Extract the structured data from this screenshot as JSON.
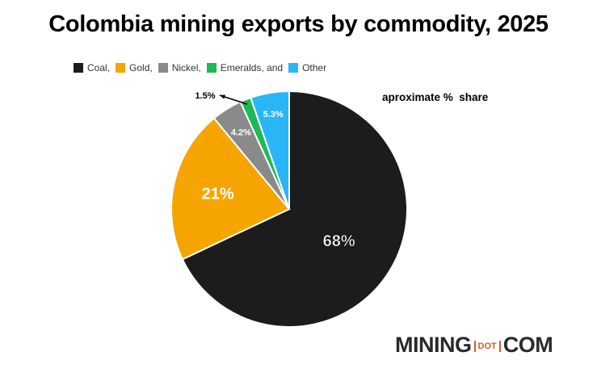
{
  "chart_data": {
    "type": "pie",
    "title": "Colombia mining exports by commodity, 2025",
    "note": "aproximate %  share",
    "legend_position": "top-left",
    "legend": [
      "Coal,",
      "Gold,",
      "Nickel,",
      "Emeralds, and",
      "Other"
    ],
    "slices": [
      {
        "name": "Coal",
        "value": 68,
        "label": "68%",
        "color": "#1c1c1c"
      },
      {
        "name": "Gold",
        "value": 21,
        "label": "21%",
        "color": "#f6a500"
      },
      {
        "name": "Nickel",
        "value": 4.2,
        "label": "4.2%",
        "color": "#8a8a8a"
      },
      {
        "name": "Emeralds",
        "value": 1.5,
        "label": "1.5%",
        "color": "#1db954"
      },
      {
        "name": "Other",
        "value": 5.3,
        "label": "5.3%",
        "color": "#29b6f6"
      }
    ]
  },
  "logo": {
    "left": "MINING",
    "middle": "DOT",
    "right": "COM"
  }
}
